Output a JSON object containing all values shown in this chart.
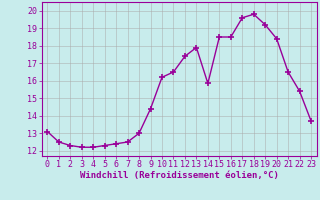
{
  "x": [
    0,
    1,
    2,
    3,
    4,
    5,
    6,
    7,
    8,
    9,
    10,
    11,
    12,
    13,
    14,
    15,
    16,
    17,
    18,
    19,
    20,
    21,
    22,
    23
  ],
  "y": [
    13.1,
    12.5,
    12.3,
    12.2,
    12.2,
    12.3,
    12.4,
    12.5,
    13.0,
    14.4,
    16.2,
    16.5,
    17.4,
    17.9,
    15.85,
    18.5,
    18.5,
    19.6,
    19.8,
    19.2,
    18.4,
    16.5,
    15.4,
    13.7
  ],
  "color": "#990099",
  "marker": "+",
  "markersize": 4,
  "linewidth": 1.0,
  "xlabel": "Windchill (Refroidissement éolien,°C)",
  "xlabel_fontsize": 6.5,
  "ylabel_ticks": [
    12,
    13,
    14,
    15,
    16,
    17,
    18,
    19,
    20
  ],
  "xlim": [
    -0.5,
    23.5
  ],
  "ylim": [
    11.7,
    20.5
  ],
  "background_color": "#c8ecec",
  "grid_color": "#aaaaaa",
  "tick_fontsize": 6
}
